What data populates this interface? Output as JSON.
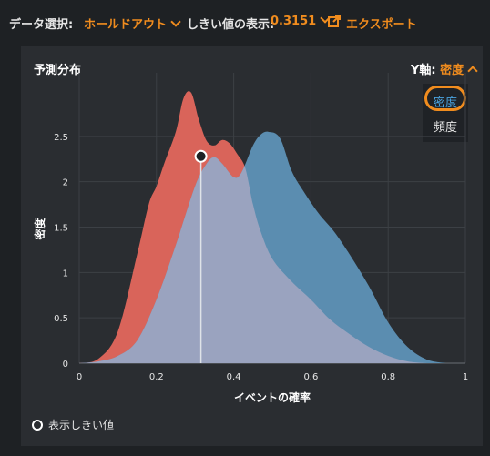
{
  "toolbar": {
    "data_select_label": "データ選択:",
    "data_select_value": "ホールドアウト",
    "threshold_label": "しきい値の表示:",
    "threshold_value": "0.3151",
    "export_label": "エクスポート"
  },
  "panel": {
    "title": "予測分布",
    "yaxis_label": "Y軸:",
    "yaxis_value": "密度",
    "dropdown_options": [
      "密度",
      "頻度"
    ],
    "dropdown_selected": "密度",
    "legend_label": "表示しきい値"
  },
  "colors": {
    "accent": "#f08c1e",
    "negative_fill": "#d9645a",
    "positive_fill": "#5b8db0",
    "overlap_fill": "#9aa3bf",
    "selected_option": "#4aa3df"
  },
  "chart_data": {
    "type": "area",
    "xlabel": "イベントの確率",
    "ylabel": "密度",
    "xlim": [
      0,
      1
    ],
    "ylim": [
      0,
      3
    ],
    "xticks": [
      "0",
      "0.2",
      "0.4",
      "0.6",
      "0.8",
      "1"
    ],
    "yticks": [
      "0",
      "0.5",
      "1",
      "1.5",
      "2",
      "2.5"
    ],
    "threshold": 0.3151,
    "threshold_density": 2.28,
    "series": [
      {
        "x": [
          0.0,
          0.05,
          0.1,
          0.15,
          0.18,
          0.2,
          0.22,
          0.25,
          0.27,
          0.29,
          0.31,
          0.33,
          0.35,
          0.37,
          0.39,
          0.41,
          0.43,
          0.45,
          0.47,
          0.5,
          0.55,
          0.6,
          0.65,
          0.7,
          0.75,
          0.8,
          0.85,
          0.9
        ],
        "values": [
          0.0,
          0.05,
          0.35,
          1.2,
          1.75,
          1.95,
          2.2,
          2.55,
          2.92,
          2.98,
          2.68,
          2.45,
          2.4,
          2.46,
          2.42,
          2.3,
          2.15,
          1.75,
          1.45,
          1.15,
          0.9,
          0.7,
          0.48,
          0.32,
          0.18,
          0.08,
          0.02,
          0.0
        ]
      },
      {
        "x": [
          0.0,
          0.05,
          0.1,
          0.15,
          0.2,
          0.25,
          0.3,
          0.33,
          0.35,
          0.37,
          0.4,
          0.42,
          0.45,
          0.47,
          0.49,
          0.52,
          0.55,
          0.58,
          0.62,
          0.66,
          0.7,
          0.75,
          0.8,
          0.85,
          0.9,
          0.95
        ],
        "values": [
          0.0,
          0.02,
          0.08,
          0.25,
          0.7,
          1.3,
          1.95,
          2.2,
          2.27,
          2.2,
          2.05,
          2.1,
          2.4,
          2.52,
          2.55,
          2.48,
          2.12,
          1.9,
          1.65,
          1.45,
          1.2,
          0.85,
          0.45,
          0.18,
          0.04,
          0.0
        ]
      }
    ]
  }
}
